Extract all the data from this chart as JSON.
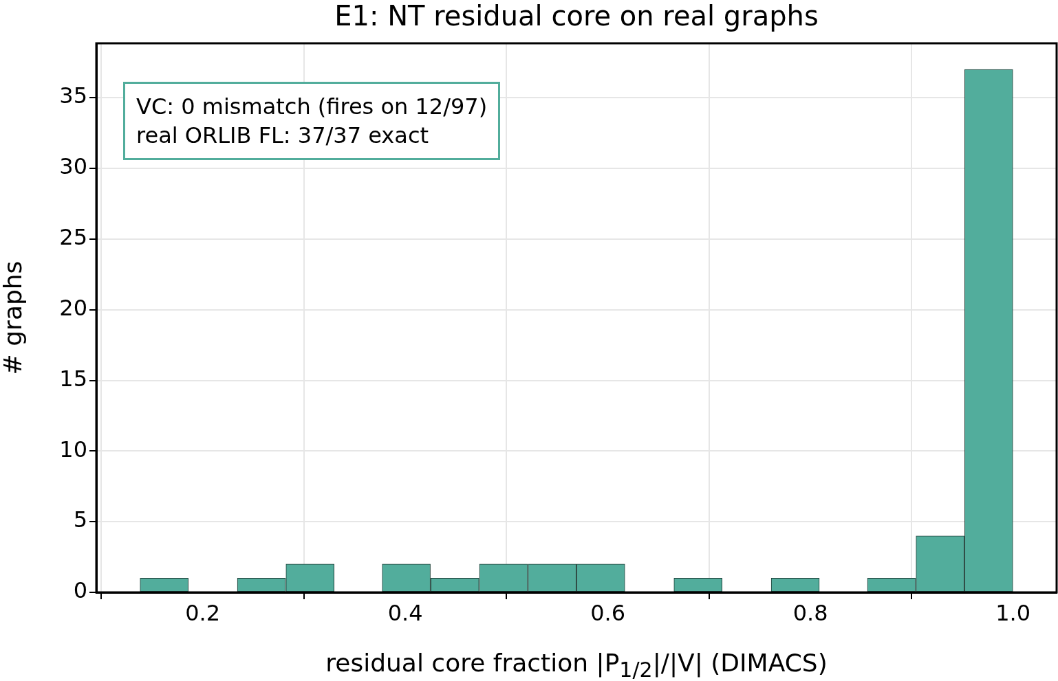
{
  "chart_data": {
    "type": "histogram",
    "title": "E1: NT residual core on real graphs",
    "xlabel": "residual core fraction |P$_{1/2}$|/|V| (DIMACS)",
    "ylabel": "# graphs",
    "bins": [
      0.138,
      0.186,
      0.234,
      0.282,
      0.33,
      0.377,
      0.425,
      0.473,
      0.521,
      0.569,
      0.617,
      0.665,
      0.713,
      0.761,
      0.809,
      0.856,
      0.904,
      0.952,
      1.0
    ],
    "values": [
      1,
      0,
      1,
      2,
      0,
      2,
      1,
      2,
      2,
      2,
      0,
      1,
      0,
      1,
      0,
      1,
      4,
      37
    ],
    "color": "#52ad9c",
    "xlim": [
      0.095,
      1.043
    ],
    "xticks": [
      {
        "value": 0.2,
        "label": "0.2"
      },
      {
        "value": 0.4,
        "label": "0.4"
      },
      {
        "value": 0.6,
        "label": "0.6"
      },
      {
        "value": 0.8,
        "label": "0.8"
      },
      {
        "value": 1.0,
        "label": "1.0"
      }
    ],
    "ylim": [
      0,
      38.85
    ],
    "yticks": [
      0,
      5,
      10,
      15,
      20,
      25,
      30,
      35
    ],
    "grid": true,
    "annotations": [
      "VC: 0 mismatch (fires on 12/97)",
      "real ORLIB FL: 37/37 exact"
    ]
  }
}
